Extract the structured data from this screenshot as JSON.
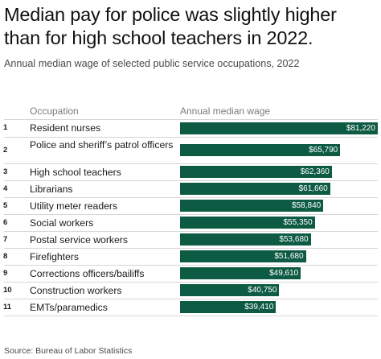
{
  "title": "Median pay for police was slightly higher than for high school teachers in 2022.",
  "subtitle": "Annual median wage of selected public service occupations, 2022",
  "columns": {
    "occupation": "Occupation",
    "wage": "Annual median wage"
  },
  "source": "Source: Bureau of Labor Statistics",
  "colors": {
    "bar": "#0e5b44",
    "bar_label": "#ffffff"
  },
  "chart_data": {
    "type": "bar",
    "orientation": "horizontal",
    "title": "Median pay for police was slightly higher than for high school teachers in 2022.",
    "subtitle": "Annual median wage of selected public service occupations, 2022",
    "categories": [
      "Resident nurses",
      "Police and sheriff’s patrol officers",
      "High school teachers",
      "Librarians",
      "Utility meter readers",
      "Social workers",
      "Postal service workers",
      "Firefighters",
      "Corrections officers/bailiffs",
      "Construction workers",
      "EMTs/paramedics"
    ],
    "ranks": [
      "1",
      "2",
      "3",
      "4",
      "5",
      "6",
      "7",
      "8",
      "9",
      "10",
      "11"
    ],
    "values": [
      81220,
      65790,
      62360,
      61660,
      58840,
      55350,
      53680,
      51680,
      49610,
      40750,
      39410
    ],
    "value_labels": [
      "$81,220",
      "$65,790",
      "$62,360",
      "$61,660",
      "$58,840",
      "$55,350",
      "$53,680",
      "$51,680",
      "$49,610",
      "$40,750",
      "$39,410"
    ],
    "xlim": [
      0,
      81220
    ],
    "legend": "none",
    "grid": false
  }
}
